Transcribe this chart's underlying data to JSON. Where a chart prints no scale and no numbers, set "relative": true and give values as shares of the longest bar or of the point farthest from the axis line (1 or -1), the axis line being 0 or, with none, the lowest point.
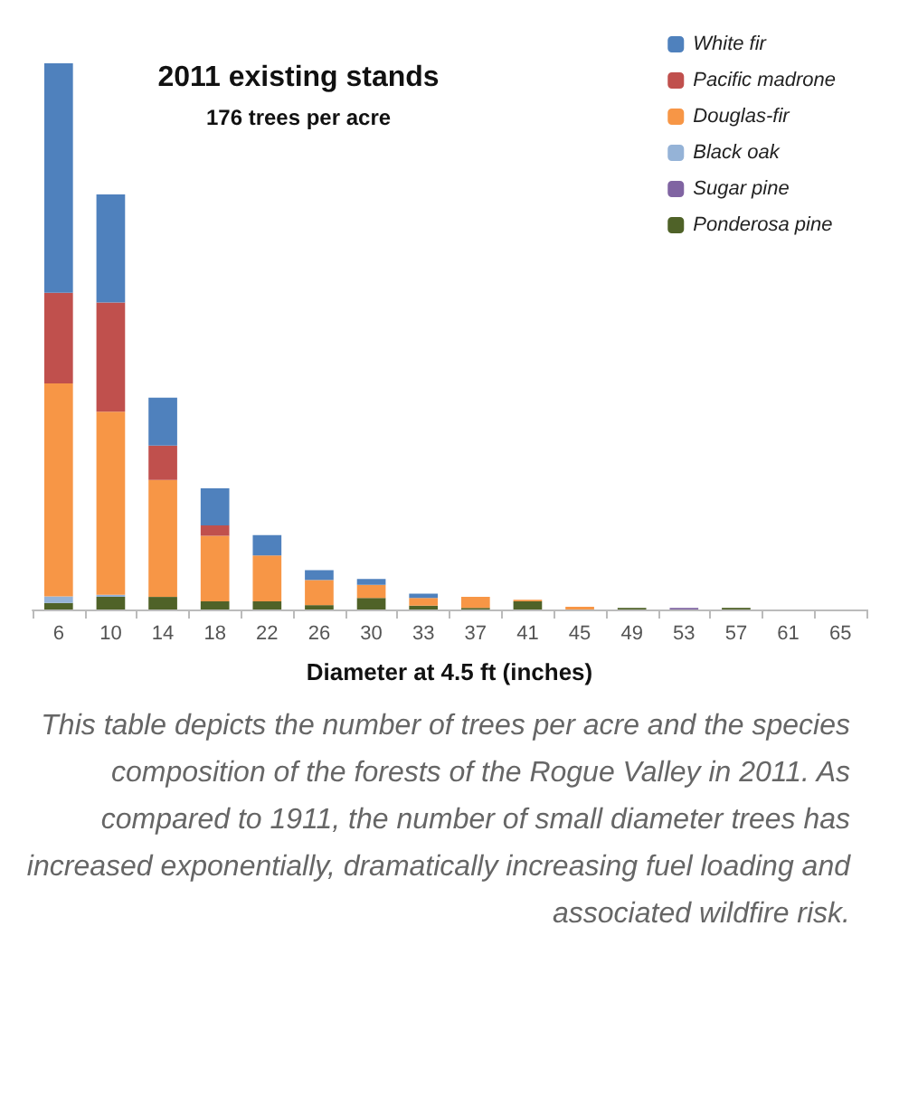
{
  "chart_data": {
    "type": "bar",
    "title": "2011 existing stands",
    "subtitle": "176 trees per acre",
    "xlabel": "Diameter at 4.5 ft (inches)",
    "annotations": [
      "This table depicts the number of trees per acre and the species composition of the forests of the Rogue Valley in 2011. As compared to 1911, the number of small diameter trees has increased exponentially, dramatically increasing fuel loading and associated wildfire risk."
    ],
    "categories": [
      "6",
      "10",
      "14",
      "18",
      "22",
      "26",
      "30",
      "33",
      "37",
      "41",
      "45",
      "49",
      "53",
      "57",
      "61",
      "65"
    ],
    "stacked": true,
    "relative": true,
    "legend": "top right",
    "series": [
      {
        "name": "Ponderosa pine",
        "color": "#4f6228",
        "values": [
          0.012,
          0.023,
          0.023,
          0.015,
          0.015,
          0.008,
          0.021,
          0.007,
          0.003,
          0.015,
          0,
          0.003,
          0,
          0.003,
          0,
          0
        ]
      },
      {
        "name": "Sugar pine",
        "color": "#8064a2",
        "values": [
          0,
          0,
          0,
          0,
          0,
          0,
          0,
          0,
          0,
          0,
          0,
          0,
          0.003,
          0,
          0,
          0
        ]
      },
      {
        "name": "Black oak",
        "color": "#95b3d7",
        "values": [
          0.012,
          0.004,
          0,
          0,
          0,
          0,
          0,
          0,
          0,
          0,
          0,
          0,
          0,
          0,
          0,
          0
        ]
      },
      {
        "name": "Douglas-fir",
        "color": "#f79646",
        "values": [
          0.39,
          0.335,
          0.214,
          0.12,
          0.084,
          0.046,
          0.024,
          0.014,
          0.02,
          0.003,
          0.005,
          0,
          0,
          0,
          0,
          0
        ]
      },
      {
        "name": "Pacific madrone",
        "color": "#c0504d",
        "values": [
          0.166,
          0.2,
          0.063,
          0.019,
          0,
          0,
          0,
          0,
          0,
          0,
          0,
          0,
          0,
          0,
          0,
          0
        ]
      },
      {
        "name": "White fir",
        "color": "#4f81bd",
        "values": [
          0.42,
          0.198,
          0.088,
          0.068,
          0.037,
          0.018,
          0.011,
          0.008,
          0,
          0,
          0,
          0,
          0,
          0,
          0,
          0
        ]
      }
    ]
  }
}
